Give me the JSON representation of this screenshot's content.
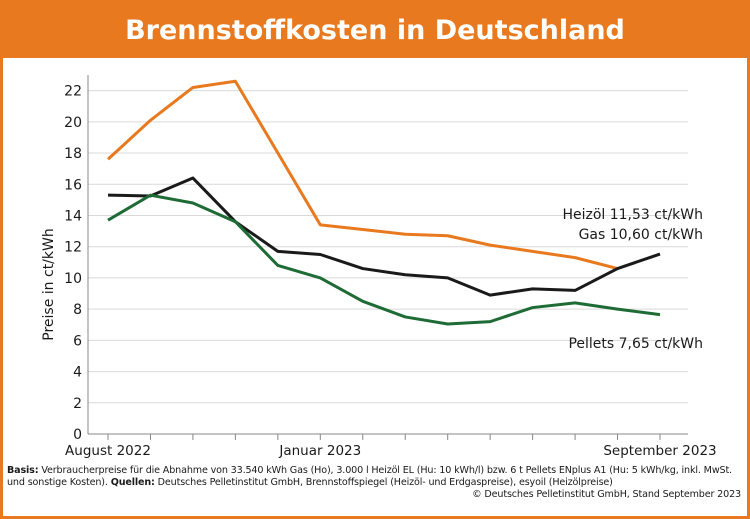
{
  "chart_data": {
    "type": "line",
    "title": "Brennstoffkosten in Deutschland",
    "y_label": "Preise in ct/kWh",
    "categories": [
      "August 2022",
      null,
      null,
      null,
      null,
      "Januar 2023",
      null,
      null,
      null,
      null,
      null,
      null,
      null,
      "September 2023"
    ],
    "series": [
      {
        "name": "Gas",
        "color": "#e8791e",
        "values": [
          17.6,
          20.1,
          22.2,
          22.6,
          18.0,
          13.4,
          13.1,
          12.8,
          12.7,
          12.1,
          11.7,
          11.3,
          10.6,
          null
        ]
      },
      {
        "name": "Heizöl",
        "color": "#1a1a1a",
        "values": [
          15.3,
          15.25,
          16.4,
          13.6,
          11.7,
          11.5,
          10.6,
          10.2,
          10.0,
          8.9,
          9.3,
          9.2,
          10.6,
          11.53
        ]
      },
      {
        "name": "Pellets",
        "color": "#1e6b35",
        "values": [
          13.7,
          15.3,
          14.8,
          13.6,
          10.8,
          10.0,
          8.5,
          7.5,
          7.05,
          7.2,
          8.1,
          8.4,
          8.0,
          7.65
        ]
      }
    ],
    "annotations": [
      "Heizöl 11,53 ct/kWh",
      "Gas 10,60 ct/kWh",
      "Pellets 7,65 ct/kWh"
    ],
    "ylim": [
      0,
      23
    ],
    "yticks": [
      0,
      2,
      4,
      6,
      8,
      10,
      12,
      14,
      16,
      18,
      20,
      22
    ],
    "grid": true,
    "footer": {
      "basis_label": "Basis:",
      "basis_text": "Verbraucherpreise für die Abnahme von 33.540 kWh Gas (Ho), 3.000 l Heizöl EL (Hu: 10 kWh/l) bzw. 6 t Pellets ENplus A1 (Hu: 5 kWh/kg, inkl. MwSt. und sonstige Kosten).",
      "quellen_label": "Quellen:",
      "quellen_text": "Deutsches Pelletinstitut GmbH, Brennstoffspiegel (Heizöl- und Erdgaspreise), esyoil (Heizölpreise)",
      "copyright": "© Deutsches Pelletinstitut GmbH, Stand September 2023"
    }
  }
}
